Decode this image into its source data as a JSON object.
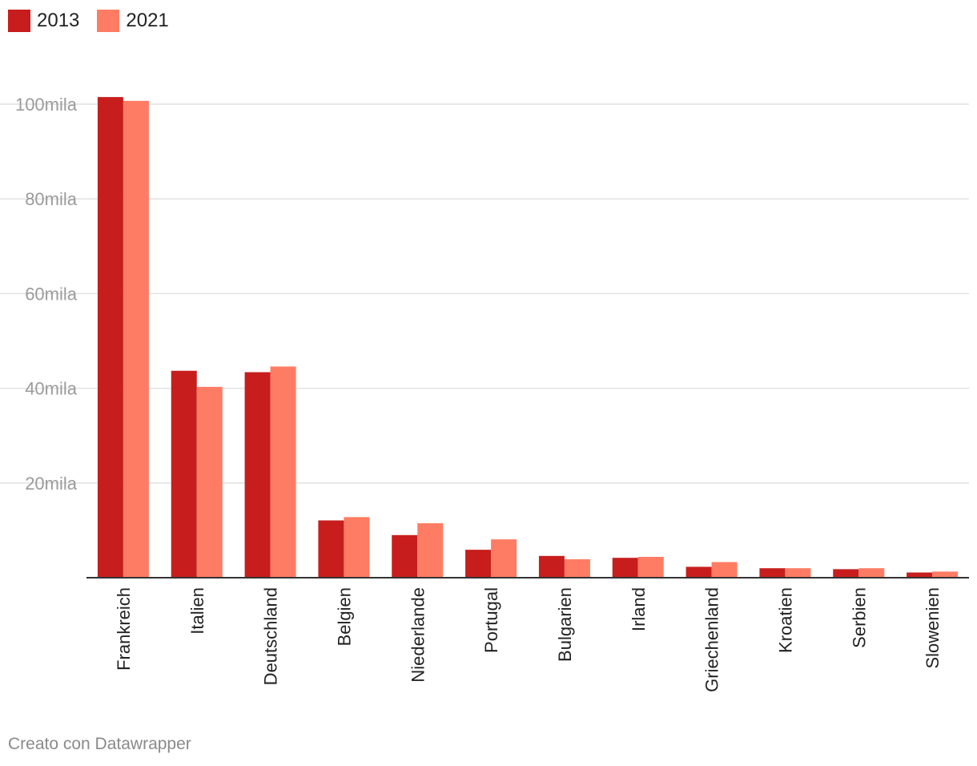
{
  "legend": {
    "items": [
      {
        "label": "2013",
        "color": "#c71e1d"
      },
      {
        "label": "2021",
        "color": "#ff7c64"
      }
    ]
  },
  "footer": {
    "credit": "Creato con Datawrapper"
  },
  "chart_data": {
    "type": "bar",
    "categories": [
      "Frankreich",
      "Italien",
      "Deutschland",
      "Belgien",
      "Niederlande",
      "Portugal",
      "Bulgarien",
      "Irland",
      "Griechenland",
      "Kroatien",
      "Serbien",
      "Slowenien"
    ],
    "series": [
      {
        "name": "2013",
        "color": "#c71e1d",
        "values": [
          101500,
          43700,
          43400,
          12100,
          9000,
          5900,
          4600,
          4200,
          2300,
          2000,
          1800,
          1100
        ]
      },
      {
        "name": "2021",
        "color": "#ff7c64",
        "values": [
          100700,
          40300,
          44600,
          12800,
          11500,
          8100,
          3900,
          4400,
          3300,
          2000,
          2000,
          1300
        ]
      }
    ],
    "yticks": [
      {
        "value": 20000,
        "label": "20mila"
      },
      {
        "value": 40000,
        "label": "40mila"
      },
      {
        "value": 60000,
        "label": "60mila"
      },
      {
        "value": 80000,
        "label": "80mila"
      },
      {
        "value": 100000,
        "label": "100mila"
      }
    ],
    "ylim": [
      0,
      103000
    ],
    "grid": true,
    "legend_position": "top-left"
  }
}
